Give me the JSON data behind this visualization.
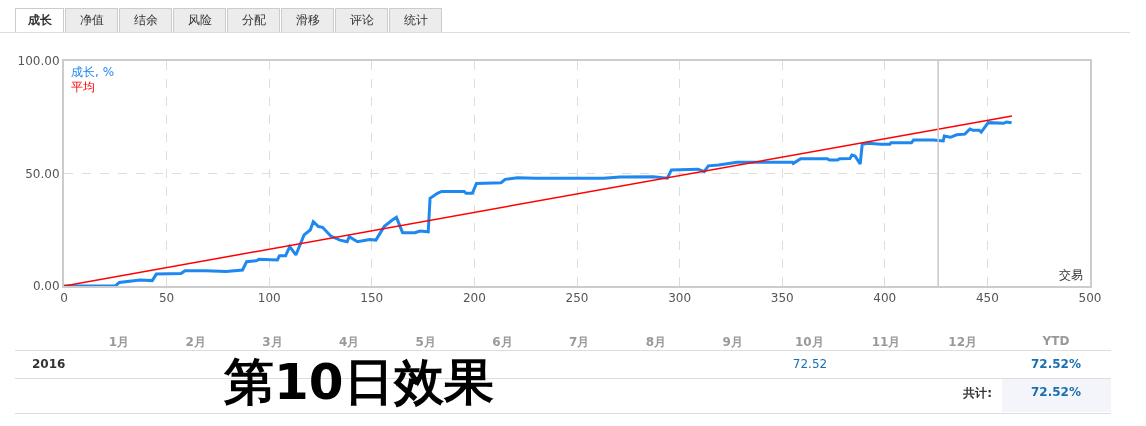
{
  "chart_data": {
    "type": "line",
    "xlabel": "交易",
    "xlim": [
      0,
      500
    ],
    "xticks": [
      0,
      50,
      100,
      150,
      200,
      250,
      300,
      350,
      400,
      450,
      500
    ],
    "ylim": [
      0,
      100
    ],
    "yticks": [
      {
        "value": 0,
        "label": "0.00"
      },
      {
        "value": 50,
        "label": "50.00"
      },
      {
        "value": 100,
        "label": "100.00"
      }
    ],
    "grid": true,
    "legend": "top left",
    "line_style": "solid",
    "marker": "none",
    "series": [
      {
        "name": "成长, %",
        "color": "#1e88f0",
        "x": [
          0,
          25,
          27,
          37,
          43,
          45,
          57,
          59,
          69,
          79,
          87,
          89,
          94,
          95,
          104,
          105,
          108,
          110,
          113,
          117,
          120,
          121.5,
          124,
          126,
          130,
          134.5,
          138,
          139,
          143,
          149,
          152,
          156,
          160,
          162,
          165,
          171,
          173.5,
          177.5,
          178.4,
          182,
          184,
          195,
          196,
          199,
          201,
          213,
          215,
          221,
          230,
          263,
          271,
          287,
          294,
          296,
          309,
          312,
          314,
          319,
          328,
          355,
          355.4,
          359,
          372,
          373,
          377,
          378,
          383,
          384,
          385.5,
          388,
          389,
          392,
          398,
          402.5,
          403,
          413,
          414,
          423.6,
          428.5,
          429,
          432,
          435,
          439,
          441.5,
          443,
          446,
          447,
          450.4,
          458,
          459.3,
          461.8
        ],
        "values": [
          0,
          0,
          1.6,
          2.7,
          2.4,
          5.3,
          5.6,
          6.8,
          6.8,
          6.4,
          7.1,
          10.8,
          11.3,
          11.9,
          11.6,
          13.5,
          13.5,
          17.5,
          13.8,
          22.7,
          24.9,
          28.6,
          26.4,
          26.1,
          22.2,
          20.4,
          19.7,
          21.9,
          19.7,
          20.7,
          20.4,
          26.4,
          29.3,
          30.5,
          23.7,
          23.7,
          24.4,
          24.1,
          39,
          41.2,
          42,
          42,
          41.2,
          41.2,
          45.6,
          45.9,
          47.4,
          48.1,
          47.9,
          47.9,
          48.4,
          48.6,
          47.9,
          51.6,
          51.9,
          50.8,
          53.4,
          53.8,
          55,
          55,
          54.5,
          56.6,
          56.6,
          56,
          56,
          56.6,
          56.7,
          58.2,
          57.8,
          54.2,
          63,
          63.4,
          63,
          63,
          63.7,
          63.7,
          64.9,
          64.9,
          64.5,
          66.7,
          66.1,
          67.2,
          67.5,
          69.8,
          69.2,
          69.2,
          68.4,
          72.6,
          72.3,
          72.9,
          72.52
        ]
      },
      {
        "name": "平均",
        "color": "#ff0000",
        "x": [
          0,
          462
        ],
        "values": [
          0,
          75.6
        ]
      }
    ],
    "ref_lines": [
      {
        "axis": "x",
        "value": 426,
        "color": "#c8c8c8"
      }
    ],
    "annotations": [
      "成长",
      "净值",
      "结余",
      "风险",
      "分配",
      "滑移",
      "评论",
      "统计",
      "1月",
      "2月",
      "3月",
      "4月",
      "5月",
      "6月",
      "7月",
      "8月",
      "9月",
      "10月",
      "11月",
      "12月",
      "YTD",
      "2016",
      "72.52",
      "72.52%",
      "共计:",
      "72.52%",
      "第10日效果"
    ]
  }
}
